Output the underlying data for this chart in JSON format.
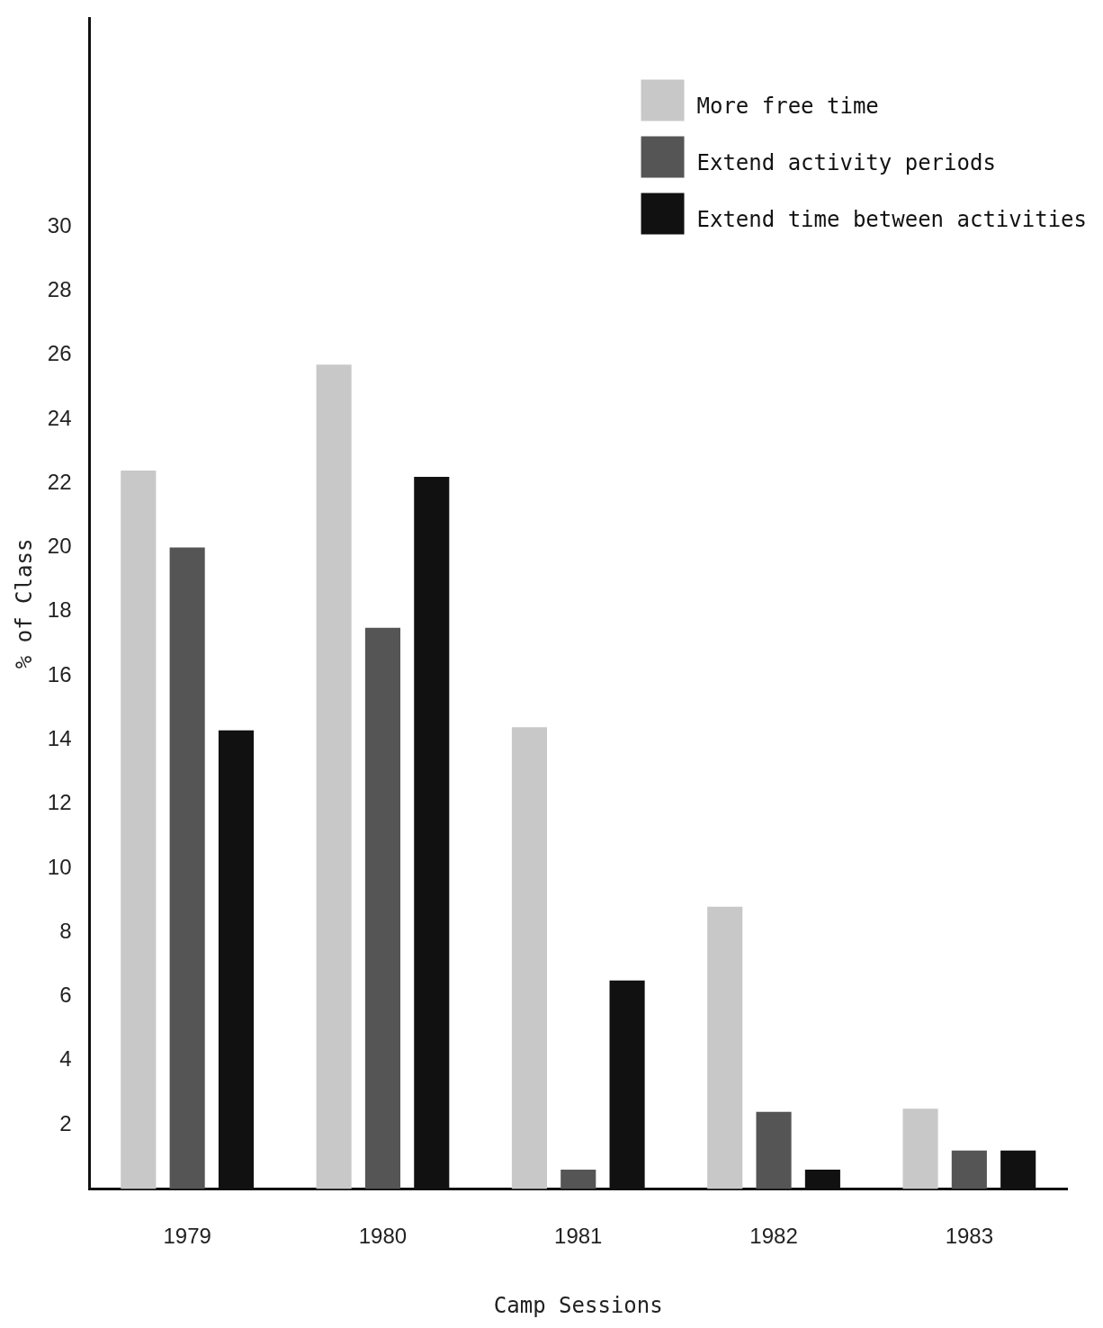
{
  "chart_data": {
    "type": "bar",
    "xlabel": "Camp Sessions",
    "ylabel": "% of Class",
    "categories": [
      "1979",
      "1980",
      "1981",
      "1982",
      "1983"
    ],
    "series": [
      {
        "name": "More free time",
        "color": "#c8c8c8",
        "values": [
          22.4,
          25.7,
          14.4,
          8.8,
          2.5
        ]
      },
      {
        "name": "Extend activity periods",
        "color": "#555555",
        "values": [
          20.0,
          17.5,
          0.6,
          2.4,
          1.2
        ]
      },
      {
        "name": "Extend time between activities",
        "color": "#111111",
        "values": [
          14.3,
          22.2,
          6.5,
          0.6,
          1.2
        ]
      }
    ],
    "ylim": [
      0,
      36.5
    ],
    "yticks": [
      2,
      4,
      6,
      8,
      10,
      12,
      14,
      16,
      18,
      20,
      22,
      24,
      26,
      28,
      30
    ],
    "grid": false,
    "legend": "top right"
  }
}
